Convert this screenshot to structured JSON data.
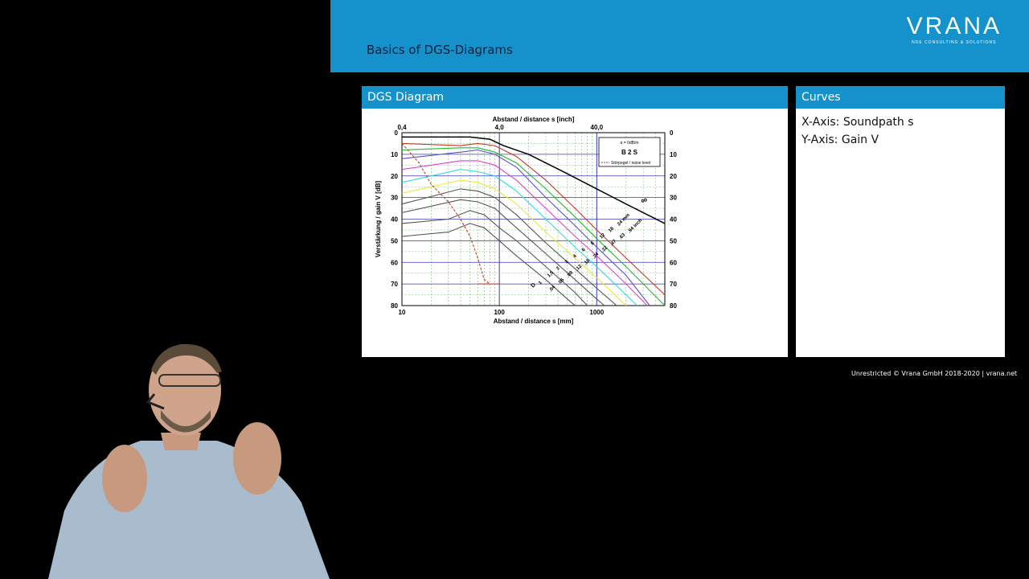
{
  "header": {
    "title": "Basics of DGS-Diagrams",
    "logo": "VRANA",
    "logo_sub": "NDE CONSULTING & SOLUTIONS"
  },
  "diagram_panel": {
    "title": "DGS Diagram"
  },
  "curves_panel": {
    "title": "Curves",
    "lines": [
      "X-Axis: Soundpath s",
      "Y-Axis: Gain V"
    ]
  },
  "footer": {
    "text": "Unrestricted © Vrana GmbH 2018-2020 | vrana.net"
  },
  "colors": {
    "accent": "#1591cc",
    "background": "#000000"
  },
  "chart_data": {
    "type": "line",
    "xlabel": "Abstand / distance s [mm]",
    "xlabel_top": "Abstand / distance s [inch]",
    "ylabel": "Verstärkung / gain V [dB]",
    "x_scale": "log",
    "xlim": [
      10,
      5000
    ],
    "ylim": [
      0,
      80
    ],
    "x_ticks": [
      "10",
      "100",
      "1000"
    ],
    "x_ticks_top": [
      "0,4",
      "4,0",
      "40,0"
    ],
    "y_ticks": [
      "0",
      "10",
      "20",
      "30",
      "40",
      "50",
      "60",
      "70",
      "80"
    ],
    "legend": {
      "lines": [
        "α = 0dB/m",
        "B 2 S",
        "Störpegel / noise level"
      ],
      "position": "top-right"
    },
    "dd_label": "D",
    "mm_labels": [
      "1",
      "1,5",
      "2",
      "3",
      "4",
      "6",
      "8",
      "12",
      "16",
      "24 mm"
    ],
    "inch_labels": [
      ".04",
      ".06",
      ".08",
      ".12",
      ".16",
      ".24",
      ".32",
      ".47",
      ".63",
      ".94 inch"
    ],
    "infinity_label": "∞",
    "grid": true,
    "series": [
      {
        "color": "#000000",
        "points": [
          [
            10,
            2
          ],
          [
            50,
            2
          ],
          [
            80,
            3
          ],
          [
            110,
            6
          ],
          [
            200,
            10
          ],
          [
            500,
            19
          ],
          [
            1000,
            26
          ],
          [
            2000,
            33
          ],
          [
            5000,
            42
          ]
        ]
      },
      {
        "color": "#c0392b",
        "points": [
          [
            10,
            5
          ],
          [
            40,
            6
          ],
          [
            60,
            5
          ],
          [
            90,
            6
          ],
          [
            150,
            11
          ],
          [
            300,
            22
          ],
          [
            600,
            35
          ],
          [
            1000,
            45
          ],
          [
            2000,
            58
          ],
          [
            5000,
            75
          ]
        ]
      },
      {
        "color": "#27b827",
        "points": [
          [
            10,
            8
          ],
          [
            40,
            7
          ],
          [
            60,
            7
          ],
          [
            90,
            9
          ],
          [
            150,
            14
          ],
          [
            300,
            26
          ],
          [
            600,
            39
          ],
          [
            1000,
            49
          ],
          [
            2000,
            62
          ],
          [
            5000,
            80
          ]
        ]
      },
      {
        "color": "#5a4fcf",
        "points": [
          [
            10,
            12
          ],
          [
            40,
            9
          ],
          [
            60,
            8
          ],
          [
            90,
            10
          ],
          [
            150,
            16
          ],
          [
            300,
            30
          ],
          [
            600,
            43
          ],
          [
            1000,
            53
          ],
          [
            2000,
            66
          ],
          [
            3500,
            80
          ]
        ]
      },
      {
        "color": "#e040d0",
        "points": [
          [
            10,
            17
          ],
          [
            40,
            13
          ],
          [
            60,
            13
          ],
          [
            90,
            15
          ],
          [
            150,
            22
          ],
          [
            300,
            35
          ],
          [
            600,
            48
          ],
          [
            1000,
            57
          ],
          [
            2000,
            70
          ],
          [
            3300,
            80
          ]
        ]
      },
      {
        "color": "#30d8e8",
        "points": [
          [
            10,
            23
          ],
          [
            40,
            17
          ],
          [
            60,
            18
          ],
          [
            90,
            20
          ],
          [
            150,
            27
          ],
          [
            300,
            40
          ],
          [
            600,
            53
          ],
          [
            1000,
            62
          ],
          [
            2000,
            75
          ],
          [
            2600,
            80
          ]
        ]
      },
      {
        "color": "#e8e840",
        "points": [
          [
            10,
            28
          ],
          [
            40,
            22
          ],
          [
            60,
            23
          ],
          [
            90,
            26
          ],
          [
            150,
            33
          ],
          [
            300,
            46
          ],
          [
            600,
            58
          ],
          [
            1000,
            67
          ],
          [
            2000,
            80
          ]
        ]
      },
      {
        "color": "#555555",
        "points": [
          [
            10,
            33
          ],
          [
            40,
            26
          ],
          [
            60,
            27
          ],
          [
            90,
            30
          ],
          [
            150,
            38
          ],
          [
            300,
            51
          ],
          [
            600,
            63
          ],
          [
            1000,
            72
          ],
          [
            1600,
            80
          ]
        ]
      },
      {
        "color": "#555555",
        "points": [
          [
            10,
            37
          ],
          [
            40,
            31
          ],
          [
            60,
            32
          ],
          [
            90,
            35
          ],
          [
            150,
            44
          ],
          [
            300,
            56
          ],
          [
            600,
            68
          ],
          [
            1000,
            77
          ],
          [
            1200,
            80
          ]
        ]
      },
      {
        "color": "#555555",
        "points": [
          [
            10,
            42
          ],
          [
            30,
            40
          ],
          [
            50,
            36
          ],
          [
            70,
            38
          ],
          [
            100,
            44
          ],
          [
            150,
            50
          ],
          [
            300,
            62
          ],
          [
            600,
            74
          ],
          [
            800,
            80
          ]
        ]
      },
      {
        "color": "#555555",
        "points": [
          [
            10,
            48
          ],
          [
            30,
            46
          ],
          [
            50,
            42
          ],
          [
            70,
            44
          ],
          [
            100,
            50
          ],
          [
            150,
            57
          ],
          [
            300,
            68
          ],
          [
            500,
            77
          ],
          [
            600,
            80
          ]
        ]
      },
      {
        "color": "#c0392b",
        "dashed": true,
        "points": [
          [
            10,
            5
          ],
          [
            15,
            14
          ],
          [
            20,
            24
          ],
          [
            30,
            32
          ],
          [
            40,
            40
          ],
          [
            50,
            48
          ],
          [
            60,
            58
          ],
          [
            70,
            68
          ],
          [
            80,
            70
          ]
        ]
      },
      {
        "color": "#c0392b",
        "points": [
          [
            60,
            70
          ],
          [
            100,
            70
          ]
        ]
      }
    ]
  }
}
